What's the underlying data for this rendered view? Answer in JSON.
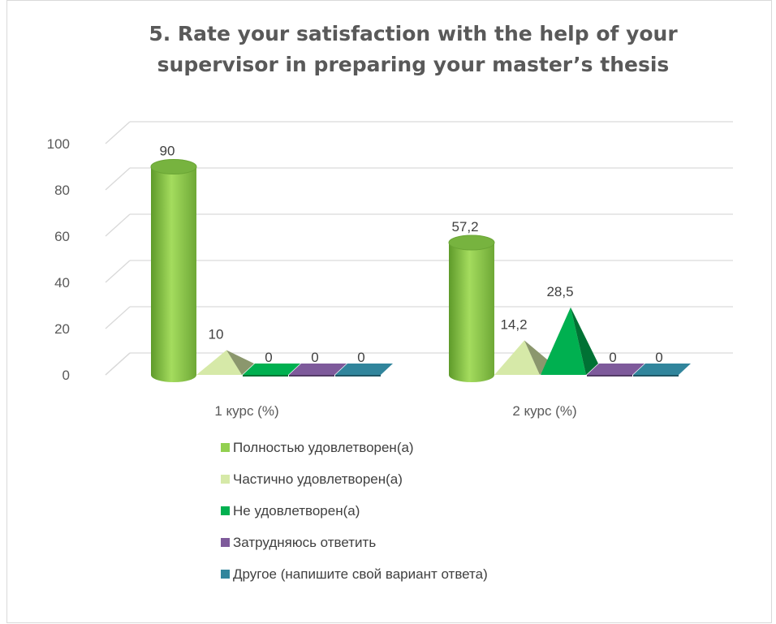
{
  "chart_data": {
    "type": "bar",
    "title": "5. Rate your satisfaction with the help of your supervisor in preparing your master’s thesis",
    "categories": [
      "1 курс (%)",
      "2 курс (%)"
    ],
    "ylim": [
      0,
      100
    ],
    "yticks": [
      0,
      20,
      40,
      60,
      80,
      100
    ],
    "grid": true,
    "legend_position": "bottom",
    "series": [
      {
        "name": "Полностью удовлетворен(а)",
        "values": [
          90,
          57.2
        ],
        "labels": [
          "90",
          "57,2"
        ],
        "shape": "cylinder",
        "color": "#92d050"
      },
      {
        "name": "Частично удовлетворен(а)",
        "values": [
          10,
          14.2
        ],
        "labels": [
          "10",
          "14,2"
        ],
        "shape": "pyramid",
        "color": "#d6e9a8"
      },
      {
        "name": "Не удовлетворен(а)",
        "values": [
          0,
          28.5
        ],
        "labels": [
          "0",
          "28,5"
        ],
        "shape": "pyramid",
        "color": "#00b050"
      },
      {
        "name": "Затрудняюсь ответить",
        "values": [
          0,
          0
        ],
        "labels": [
          "0",
          "0"
        ],
        "shape": "pyramid",
        "color": "#7e5a9b"
      },
      {
        "name": "Другое (напишите свой вариант ответа)",
        "values": [
          0,
          0
        ],
        "labels": [
          "0",
          "0"
        ],
        "shape": "pyramid",
        "color": "#31859c"
      }
    ]
  }
}
